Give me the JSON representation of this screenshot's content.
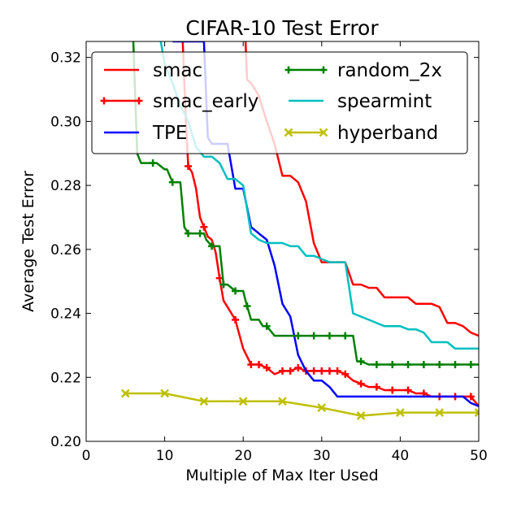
{
  "chart_data": {
    "type": "line",
    "title": "CIFAR-10 Test Error",
    "xlabel": "Multiple of Max Iter Used",
    "ylabel": "Average Test Error",
    "xlim": [
      0,
      50
    ],
    "ylim": [
      0.2,
      0.325
    ],
    "xticks": [
      0,
      10,
      20,
      30,
      40,
      50
    ],
    "xtick_labels": [
      "0",
      "10",
      "20",
      "30",
      "40",
      "50"
    ],
    "yticks": [
      0.2,
      0.22,
      0.24,
      0.26,
      0.28,
      0.3,
      0.32
    ],
    "ytick_labels": [
      "0.20",
      "0.22",
      "0.24",
      "0.26",
      "0.28",
      "0.30",
      "0.32"
    ],
    "grid": false,
    "legend_position": "top (inside axes, two columns)",
    "series": [
      {
        "name": "smac",
        "color": "#ff0000",
        "marker": "none",
        "x": [
          20.3,
          20.5,
          21.0,
          22.0,
          23.0,
          24.0,
          25.0,
          26.0,
          27.0,
          28.0,
          29.0,
          30.0,
          31.0,
          32.0,
          33.0,
          34.0,
          35.0,
          36.0,
          37.0,
          38.0,
          39.0,
          40.0,
          41.0,
          42.0,
          43.0,
          44.0,
          45.0,
          46.0,
          47.0,
          48.0,
          49.0,
          50.0
        ],
        "y": [
          0.325,
          0.313,
          0.312,
          0.308,
          0.3,
          0.293,
          0.283,
          0.283,
          0.281,
          0.275,
          0.262,
          0.256,
          0.256,
          0.256,
          0.256,
          0.249,
          0.249,
          0.248,
          0.248,
          0.245,
          0.245,
          0.245,
          0.245,
          0.243,
          0.243,
          0.243,
          0.242,
          0.237,
          0.237,
          0.236,
          0.234,
          0.233
        ]
      },
      {
        "name": "smac_early",
        "color": "#ff0000",
        "marker": "plus",
        "x": [
          12.3,
          12.7,
          13.0,
          13.5,
          14.0,
          14.5,
          15.0,
          15.5,
          16.0,
          16.5,
          17.0,
          17.5,
          18.0,
          19.0,
          20.0,
          21.0,
          22.0,
          23.0,
          24.0,
          25.0,
          26.0,
          27.0,
          28.0,
          29.0,
          30.0,
          31.0,
          32.0,
          33.0,
          34.0,
          35.0,
          36.0,
          37.0,
          38.0,
          39.0,
          40.0,
          41.0,
          42.0,
          43.0,
          44.0,
          45.0,
          46.0,
          47.0,
          48.0,
          49.0,
          50.0
        ],
        "y": [
          0.325,
          0.3,
          0.286,
          0.284,
          0.279,
          0.27,
          0.267,
          0.264,
          0.263,
          0.259,
          0.251,
          0.244,
          0.242,
          0.238,
          0.229,
          0.224,
          0.224,
          0.223,
          0.221,
          0.222,
          0.222,
          0.223,
          0.222,
          0.222,
          0.222,
          0.222,
          0.222,
          0.221,
          0.219,
          0.218,
          0.217,
          0.217,
          0.216,
          0.216,
          0.216,
          0.216,
          0.215,
          0.215,
          0.214,
          0.214,
          0.214,
          0.214,
          0.214,
          0.214,
          0.211
        ],
        "markers_x": [
          13.0,
          15.0,
          17.0,
          19.0,
          21.0,
          22.0,
          23.0,
          25.0,
          26.0,
          27.0,
          28.0,
          29.0,
          30.0,
          31.0,
          32.0,
          33.0,
          35.0,
          37.0,
          39.0,
          41.0,
          43.0,
          45.0,
          47.0,
          49.0
        ]
      },
      {
        "name": "TPE",
        "color": "#0000ff",
        "marker": "none",
        "x": [
          11.0,
          12.0,
          13.0,
          14.0,
          15.0,
          15.5,
          16.0,
          17.0,
          18.0,
          19.0,
          20.0,
          21.0,
          22.0,
          23.0,
          24.0,
          25.0,
          26.0,
          27.0,
          28.0,
          29.0,
          30.0,
          31.0,
          32.0,
          33.0,
          34.0,
          35.0,
          36.0,
          38.0,
          40.0,
          42.0,
          44.0,
          46.0,
          48.0,
          49.0,
          50.0
        ],
        "y": [
          0.325,
          0.325,
          0.325,
          0.325,
          0.325,
          0.295,
          0.293,
          0.293,
          0.293,
          0.279,
          0.279,
          0.267,
          0.265,
          0.263,
          0.255,
          0.243,
          0.239,
          0.227,
          0.222,
          0.219,
          0.219,
          0.217,
          0.214,
          0.214,
          0.214,
          0.214,
          0.214,
          0.214,
          0.214,
          0.214,
          0.214,
          0.214,
          0.214,
          0.212,
          0.211
        ]
      },
      {
        "name": "random_2x",
        "color": "#008000",
        "marker": "plus",
        "x": [
          6.0,
          6.5,
          7.0,
          8.0,
          9.0,
          10.0,
          10.3,
          11.0,
          12.0,
          12.5,
          13.0,
          14.0,
          15.0,
          15.3,
          16.0,
          17.0,
          17.5,
          18.0,
          19.0,
          20.0,
          20.3,
          21.0,
          22.0,
          22.5,
          23.0,
          24.0,
          25.0,
          26.0,
          27.0,
          28.0,
          29.0,
          30.0,
          31.0,
          32.0,
          33.0,
          34.0,
          34.5,
          35.0,
          36.0,
          37.0,
          38.0,
          39.0,
          40.0,
          41.0,
          42.0,
          43.0,
          44.0,
          45.0,
          46.0,
          47.0,
          48.0,
          49.0,
          50.0
        ],
        "y": [
          0.325,
          0.29,
          0.287,
          0.287,
          0.287,
          0.285,
          0.285,
          0.281,
          0.281,
          0.267,
          0.265,
          0.265,
          0.265,
          0.263,
          0.261,
          0.261,
          0.249,
          0.249,
          0.247,
          0.247,
          0.244,
          0.238,
          0.238,
          0.236,
          0.236,
          0.233,
          0.233,
          0.233,
          0.233,
          0.233,
          0.233,
          0.233,
          0.233,
          0.233,
          0.233,
          0.233,
          0.225,
          0.225,
          0.224,
          0.224,
          0.224,
          0.224,
          0.224,
          0.224,
          0.224,
          0.224,
          0.224,
          0.224,
          0.224,
          0.224,
          0.224,
          0.224,
          0.224
        ],
        "markers_x": [
          8.5,
          11.0,
          13.0,
          14.5,
          16.0,
          17.5,
          19.0,
          20.5,
          23.0,
          27.0,
          29.0,
          31.0,
          33.0,
          35.0,
          37.0,
          39.0,
          41.0,
          43.0,
          45.0,
          47.0,
          49.0
        ]
      },
      {
        "name": "spearmint",
        "color": "#00bfbf",
        "marker": "none",
        "x": [
          9.5,
          10.0,
          11.0,
          12.0,
          13.0,
          14.0,
          15.0,
          16.0,
          17.0,
          18.0,
          19.0,
          20.0,
          21.0,
          22.0,
          23.0,
          24.0,
          25.0,
          26.0,
          27.0,
          28.0,
          29.0,
          30.0,
          31.0,
          32.0,
          33.0,
          34.0,
          35.0,
          36.0,
          37.0,
          38.0,
          39.0,
          40.0,
          41.0,
          42.0,
          43.0,
          44.0,
          45.0,
          46.0,
          47.0,
          48.0,
          49.0,
          50.0
        ],
        "y": [
          0.325,
          0.318,
          0.312,
          0.305,
          0.3,
          0.292,
          0.289,
          0.289,
          0.287,
          0.282,
          0.282,
          0.28,
          0.265,
          0.263,
          0.262,
          0.262,
          0.262,
          0.261,
          0.261,
          0.258,
          0.258,
          0.257,
          0.256,
          0.256,
          0.256,
          0.24,
          0.239,
          0.238,
          0.237,
          0.236,
          0.236,
          0.236,
          0.235,
          0.235,
          0.234,
          0.231,
          0.231,
          0.231,
          0.229,
          0.229,
          0.229,
          0.229
        ]
      },
      {
        "name": "hyperband",
        "color": "#bfbf00",
        "marker": "x",
        "x": [
          5.0,
          10.0,
          15.0,
          20.0,
          25.0,
          30.0,
          35.0,
          40.0,
          45.0,
          50.0
        ],
        "y": [
          0.215,
          0.215,
          0.2125,
          0.2125,
          0.2125,
          0.2105,
          0.208,
          0.209,
          0.209,
          0.209
        ]
      }
    ]
  }
}
